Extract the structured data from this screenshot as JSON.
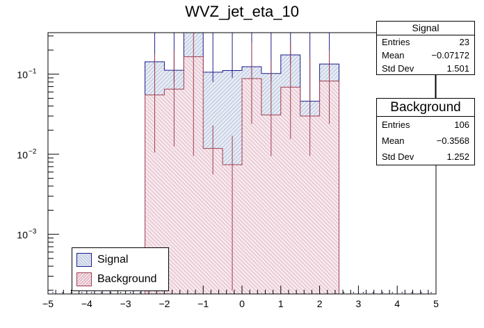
{
  "chart_data": {
    "type": "histogram",
    "title": "WVZ_jet_eta_10",
    "xlabel": "",
    "ylabel": "",
    "xlim": [
      -5,
      5
    ],
    "ylim": [
      0.00018,
      0.33
    ],
    "yscale": "log",
    "x_ticks": [
      "−5",
      "−4",
      "−3",
      "−2",
      "−1",
      "0",
      "1",
      "2",
      "3",
      "4",
      "5"
    ],
    "y_ticks": [
      {
        "value": 0.1,
        "base": "10",
        "exp": "−1"
      },
      {
        "value": 0.01,
        "base": "10",
        "exp": "−2"
      },
      {
        "value": 0.001,
        "base": "10",
        "exp": "−3"
      }
    ],
    "bin_edges": [
      -2.5,
      -2.0,
      -1.5,
      -1.0,
      -0.5,
      0.0,
      0.5,
      1.0,
      1.5,
      2.0,
      2.5
    ],
    "series": [
      {
        "name": "Signal",
        "color": "#1a1a8c",
        "fill": "#c9d3e6",
        "values": [
          0.143,
          0.112,
          0.43,
          0.106,
          0.111,
          0.124,
          0.102,
          0.174,
          0.046,
          0.134
        ],
        "errors_low": [
          0.11,
          0.08,
          0.35,
          0.08,
          0.09,
          0.095,
          0.08,
          0.13,
          0.03,
          0.1
        ],
        "errors_high": [
          0.33,
          0.33,
          0.33,
          0.33,
          0.33,
          0.33,
          0.33,
          0.33,
          0.33,
          0.33
        ]
      },
      {
        "name": "Background",
        "color": "#a03c50",
        "fill": "#eccdd7",
        "values": [
          0.055,
          0.065,
          0.165,
          0.0118,
          0.0074,
          0.088,
          0.031,
          0.069,
          0.03,
          0.082
        ],
        "errors_low": [
          0.0105,
          0.0125,
          0.0095,
          0.0056,
          0.0002,
          0.024,
          0.0095,
          0.0155,
          0.0096,
          0.024
        ],
        "errors_high": [
          0.18,
          0.2,
          0.5,
          0.023,
          0.017,
          0.25,
          0.15,
          0.25,
          0.16,
          0.2
        ]
      }
    ],
    "legend": {
      "position": "bottom-left",
      "entries": [
        "Signal",
        "Background"
      ]
    },
    "stats": [
      {
        "title": "Signal",
        "entries_label": "Entries",
        "entries": "23",
        "mean_label": "Mean",
        "mean": "−0.07172",
        "std_label": "Std Dev",
        "std": "1.501"
      },
      {
        "title": "Background",
        "entries_label": "Entries",
        "entries": "106",
        "mean_label": "Mean",
        "mean": "−0.3568",
        "std_label": "Std Dev",
        "std": "1.252"
      }
    ]
  }
}
